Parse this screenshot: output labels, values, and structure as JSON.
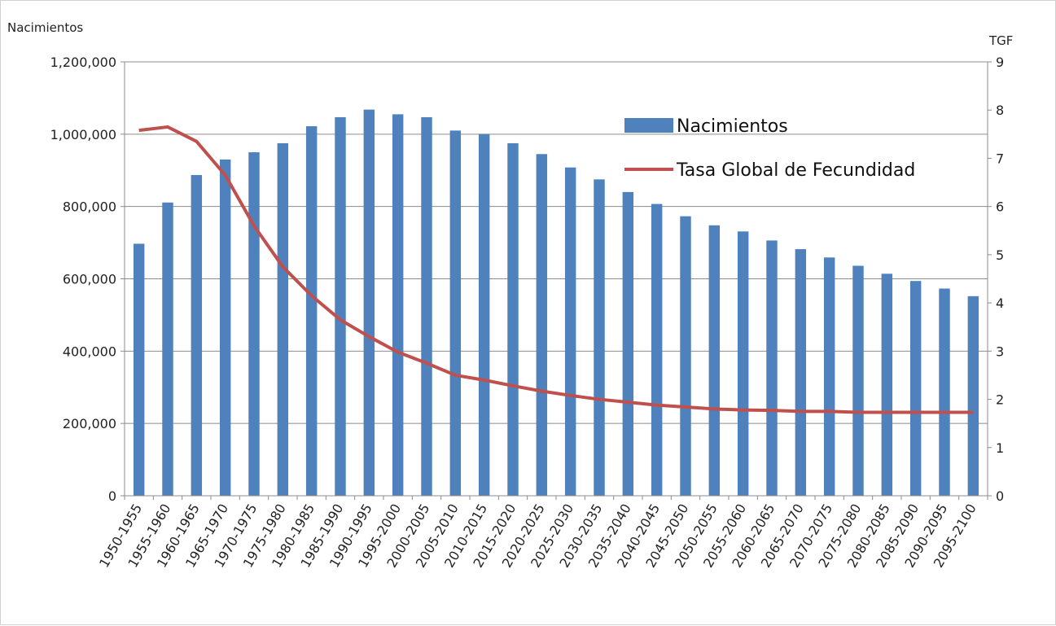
{
  "chart_data": {
    "type": "bar",
    "title": "",
    "ylabel_left": "Nacimientos",
    "ylabel_right": "TGF",
    "ylim_left": [
      0,
      1200000
    ],
    "ylim_right": [
      0,
      9
    ],
    "yticks_left": [
      0,
      200000,
      400000,
      600000,
      800000,
      1000000,
      1200000
    ],
    "yticks_left_labels": [
      "0",
      "200,000",
      "400,000",
      "600,000",
      "800,000",
      "1,000,000",
      "1,200,000"
    ],
    "yticks_right": [
      0,
      1,
      2,
      3,
      4,
      5,
      6,
      7,
      8,
      9
    ],
    "yticks_right_labels": [
      "0",
      "1",
      "2",
      "3",
      "4",
      "5",
      "6",
      "7",
      "8",
      "9"
    ],
    "grid": true,
    "legend_position": "top-right",
    "categories": [
      "1950-1955",
      "1955-1960",
      "1960-1965",
      "1965-1970",
      "1970-1975",
      "1975-1980",
      "1980-1985",
      "1985-1990",
      "1990-1995",
      "1995-2000",
      "2000-2005",
      "2005-2010",
      "2010-2015",
      "2015-2020",
      "2020-2025",
      "2025-2030",
      "2030-2035",
      "2035-2040",
      "2040-2045",
      "2045-2050",
      "2050-2055",
      "2055-2060",
      "2060-2065",
      "2065-2070",
      "2070-2075",
      "2075-2080",
      "2080-2085",
      "2085-2090",
      "2090-2095",
      "2095-2100"
    ],
    "series": [
      {
        "name": "Nacimientos",
        "kind": "bar",
        "axis": "left",
        "color": "#4F81BD",
        "values": [
          697000,
          811000,
          887000,
          930000,
          950000,
          975000,
          1022000,
          1047000,
          1068000,
          1055000,
          1047000,
          1010000,
          1000000,
          975000,
          945000,
          908000,
          875000,
          840000,
          807000,
          773000,
          748000,
          731000,
          706000,
          682000,
          659000,
          636000,
          614000,
          594000,
          573000,
          552000
        ]
      },
      {
        "name": "Tasa Global de Fecundidad",
        "kind": "line",
        "axis": "right",
        "color": "#C0504D",
        "values": [
          7.58,
          7.65,
          7.35,
          6.65,
          5.6,
          4.75,
          4.15,
          3.65,
          3.3,
          2.98,
          2.75,
          2.5,
          2.4,
          2.28,
          2.17,
          2.08,
          2.0,
          1.94,
          1.88,
          1.84,
          1.8,
          1.78,
          1.77,
          1.75,
          1.75,
          1.73,
          1.73,
          1.73,
          1.73,
          1.73
        ]
      }
    ]
  }
}
